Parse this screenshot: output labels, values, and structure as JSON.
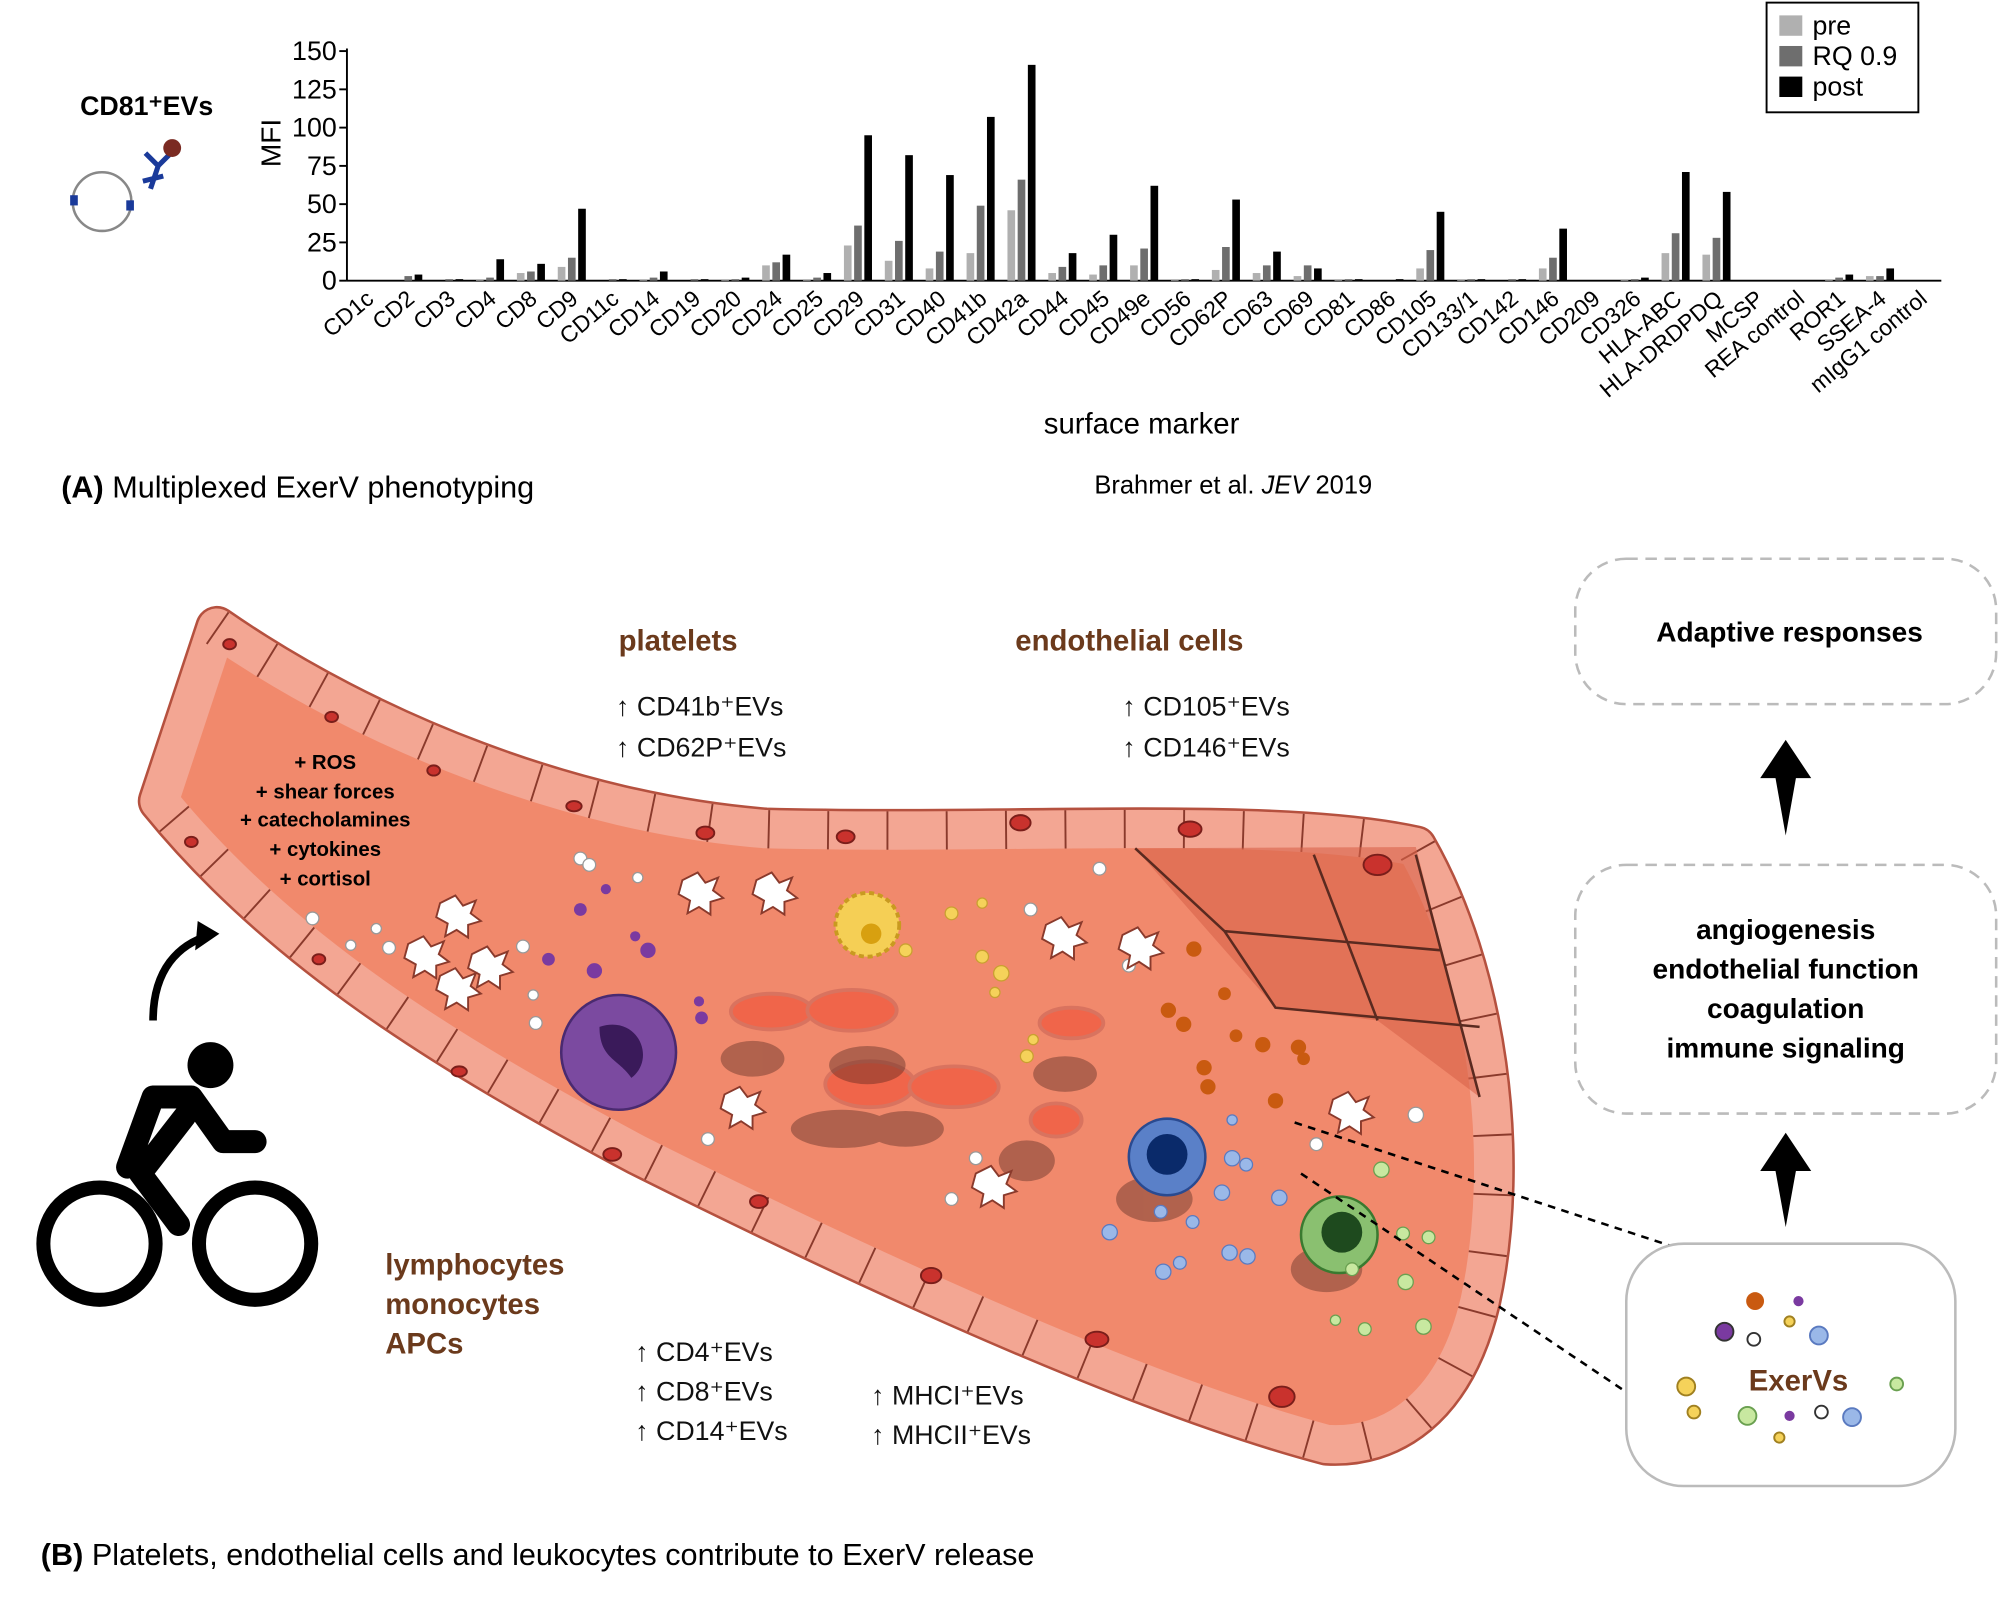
{
  "chart_data": {
    "type": "bar",
    "ylabel": "MFI",
    "xlabel": "surface marker",
    "categories": [
      "CD1c",
      "CD2",
      "CD3",
      "CD4",
      "CD8",
      "CD9",
      "CD11c",
      "CD14",
      "CD19",
      "CD20",
      "CD24",
      "CD25",
      "CD29",
      "CD31",
      "CD40",
      "CD41b",
      "CD42a",
      "CD44",
      "CD45",
      "CD49e",
      "CD56",
      "CD62P",
      "CD63",
      "CD69",
      "CD81",
      "CD86",
      "CD105",
      "CD133/1",
      "CD142",
      "CD146",
      "CD209",
      "CD326",
      "HLA-ABC",
      "HLA-DRDPDQ",
      "MCSP",
      "REA control",
      "ROR1",
      "SSEA-4",
      "mIgG1 control"
    ],
    "series": [
      {
        "name": "pre",
        "color": "#b0b0b0",
        "values": [
          0,
          0,
          0,
          1,
          5,
          9,
          0,
          1,
          0,
          1,
          10,
          1,
          23,
          13,
          8,
          18,
          46,
          5,
          4,
          10,
          1,
          7,
          5,
          3,
          1,
          0,
          8,
          1,
          0,
          8,
          0,
          1,
          18,
          17,
          0,
          0,
          1,
          3,
          0
        ]
      },
      {
        "name": "RQ 0.9",
        "color": "#6e6e6e",
        "values": [
          0,
          3,
          1,
          2,
          6,
          15,
          1,
          2,
          1,
          1,
          12,
          2,
          36,
          26,
          19,
          49,
          66,
          9,
          10,
          21,
          1,
          22,
          10,
          10,
          1,
          0,
          20,
          1,
          1,
          15,
          0,
          1,
          31,
          28,
          0,
          0,
          2,
          3,
          0
        ]
      },
      {
        "name": "post",
        "color": "#000000",
        "values": [
          0,
          4,
          1,
          14,
          11,
          47,
          1,
          6,
          1,
          2,
          17,
          5,
          95,
          82,
          69,
          107,
          141,
          18,
          30,
          62,
          1,
          53,
          19,
          8,
          1,
          1,
          45,
          1,
          1,
          34,
          0,
          2,
          71,
          58,
          0,
          0,
          4,
          8,
          0
        ]
      }
    ],
    "ylim": [
      0,
      150
    ],
    "yticks": [
      0,
      25,
      50,
      75,
      100,
      125,
      150
    ],
    "legend": "upper right"
  },
  "inset_label": "CD81⁺EVs",
  "caption_a": {
    "tag": "(A)",
    "text": " Multiplexed ExerV phenotyping"
  },
  "citation": [
    "Brahmer et al. ",
    "JEV",
    " 2019"
  ],
  "stressors": [
    "+ ROS",
    "+ shear forces",
    "+ catecholamines",
    "+ cytokines",
    "+ cortisol"
  ],
  "platelets": {
    "title": "platelets",
    "items": [
      "↑ CD41b⁺EVs",
      "↑ CD62P⁺EVs"
    ]
  },
  "endothelial": {
    "title": "endothelial cells",
    "items": [
      "↑ CD105⁺EVs",
      "↑ CD146⁺EVs"
    ]
  },
  "leukocytes": {
    "titles": [
      "lymphocytes",
      "monocytes",
      "APCs"
    ],
    "items": [
      "↑ CD4⁺EVs",
      "↑ CD8⁺EVs",
      "↑ CD14⁺EVs"
    ],
    "items2": [
      "↑ MHCI⁺EVs",
      "↑ MHCII⁺EVs"
    ]
  },
  "adaptive": "Adaptive responses",
  "functions": [
    "angiogenesis",
    "endothelial function",
    "coagulation",
    "immune signaling"
  ],
  "exervs": "ExerVs",
  "caption_b": {
    "tag": "(B)",
    "text": " Platelets, endothelial cells and leukocytes contribute to ExerV release"
  }
}
